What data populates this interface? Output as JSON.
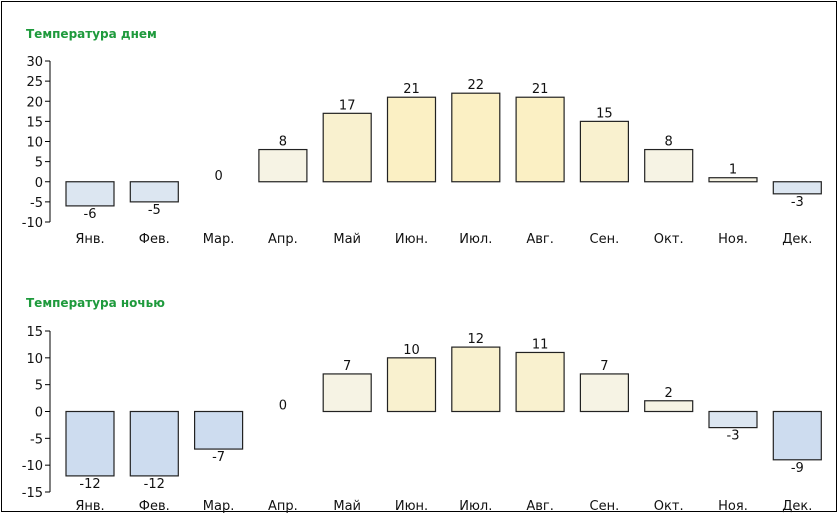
{
  "chart_data": [
    {
      "type": "bar",
      "title": "Температура днем",
      "categories": [
        "Янв.",
        "Фев.",
        "Мар.",
        "Апр.",
        "Май",
        "Июн.",
        "Июл.",
        "Авг.",
        "Сен.",
        "Окт.",
        "Ноя.",
        "Дек."
      ],
      "values": [
        -6,
        -5,
        0,
        8,
        17,
        21,
        22,
        21,
        15,
        8,
        1,
        -3
      ],
      "ylim": [
        -10,
        30
      ],
      "yticks": [
        30,
        25,
        20,
        15,
        10,
        5,
        0,
        -5,
        -10
      ],
      "yticks_text": [
        "30",
        "25",
        "20",
        "15",
        "10",
        "5",
        "0",
        "-5",
        "-10"
      ],
      "value_labels": [
        "-6",
        "-5",
        "0",
        "8",
        "17",
        "21",
        "22",
        "21",
        "15",
        "8",
        "1",
        "-3"
      ],
      "grid": false
    },
    {
      "type": "bar",
      "title": "Температура ночью",
      "categories": [
        "Янв.",
        "Фев.",
        "Мар.",
        "Апр.",
        "Май",
        "Июн.",
        "Июл.",
        "Авг.",
        "Сен.",
        "Окт.",
        "Ноя.",
        "Дек."
      ],
      "values": [
        -12,
        -12,
        -7,
        0,
        7,
        10,
        12,
        11,
        7,
        2,
        -3,
        -9
      ],
      "ylim": [
        -15,
        15
      ],
      "yticks": [
        15,
        10,
        5,
        0,
        -5,
        -10,
        -15
      ],
      "yticks_text": [
        "15",
        "10",
        "5",
        "0",
        "-5",
        "-10",
        "-15"
      ],
      "value_labels": [
        "-12",
        "-12",
        "-7",
        "0",
        "7",
        "10",
        "12",
        "11",
        "7",
        "2",
        "-3",
        "-9"
      ],
      "grid": false
    }
  ],
  "colors": {
    "title": "#1e9a3c",
    "axis": "#000000",
    "bar_outline": "#222222",
    "cold": [
      "#dce6f1",
      "#cddcef"
    ],
    "warm": [
      "#f6f3e4",
      "#f9f1cf",
      "#fbf0c4"
    ]
  }
}
